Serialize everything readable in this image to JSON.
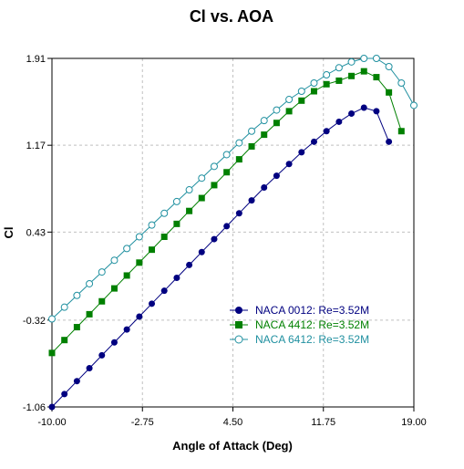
{
  "chart_data": {
    "type": "line",
    "title": "Cl vs. AOA",
    "xlabel": "Angle of Attack (Deg)",
    "ylabel": "Cl",
    "xlim": [
      -10.0,
      19.0
    ],
    "ylim": [
      -1.06,
      1.91
    ],
    "xticks": [
      "-10.00",
      "-2.75",
      "4.50",
      "11.75",
      "19.00"
    ],
    "yticks": [
      "-1.06",
      "-0.32",
      "0.43",
      "1.17",
      "1.91"
    ],
    "grid": true,
    "legend_position": "lower-right",
    "series": [
      {
        "name": "NACA 0012: Re=3.52M",
        "color": "#000080",
        "marker": "filled-circle",
        "points": [
          [
            -10,
            -1.06
          ],
          [
            -9,
            -0.95
          ],
          [
            -8,
            -0.84
          ],
          [
            -7,
            -0.73
          ],
          [
            -6,
            -0.62
          ],
          [
            -5,
            -0.51
          ],
          [
            -4,
            -0.4
          ],
          [
            -3,
            -0.29
          ],
          [
            -2,
            -0.18
          ],
          [
            -1,
            -0.07
          ],
          [
            0,
            0.04
          ],
          [
            1,
            0.15
          ],
          [
            2,
            0.26
          ],
          [
            3,
            0.37
          ],
          [
            4,
            0.48
          ],
          [
            5,
            0.59
          ],
          [
            6,
            0.7
          ],
          [
            7,
            0.81
          ],
          [
            8,
            0.91
          ],
          [
            9,
            1.01
          ],
          [
            10,
            1.11
          ],
          [
            11,
            1.2
          ],
          [
            12,
            1.29
          ],
          [
            13,
            1.37
          ],
          [
            14,
            1.44
          ],
          [
            15,
            1.49
          ],
          [
            16,
            1.46
          ],
          [
            17,
            1.2
          ]
        ]
      },
      {
        "name": "NACA 4412: Re=3.52M",
        "color": "#008000",
        "marker": "filled-square",
        "points": [
          [
            -10,
            -0.6
          ],
          [
            -9,
            -0.49
          ],
          [
            -8,
            -0.38
          ],
          [
            -7,
            -0.27
          ],
          [
            -6,
            -0.16
          ],
          [
            -5,
            -0.05
          ],
          [
            -4,
            0.06
          ],
          [
            -3,
            0.17
          ],
          [
            -2,
            0.28
          ],
          [
            -1,
            0.39
          ],
          [
            0,
            0.5
          ],
          [
            1,
            0.61
          ],
          [
            2,
            0.72
          ],
          [
            3,
            0.83
          ],
          [
            4,
            0.94
          ],
          [
            5,
            1.05
          ],
          [
            6,
            1.16
          ],
          [
            7,
            1.26
          ],
          [
            8,
            1.36
          ],
          [
            9,
            1.46
          ],
          [
            10,
            1.55
          ],
          [
            11,
            1.63
          ],
          [
            12,
            1.69
          ],
          [
            13,
            1.72
          ],
          [
            14,
            1.76
          ],
          [
            15,
            1.8
          ],
          [
            16,
            1.75
          ],
          [
            17,
            1.62
          ],
          [
            18,
            1.29
          ]
        ]
      },
      {
        "name": "NACA 6412: Re=3.52M",
        "color": "#2090A0",
        "marker": "open-circle",
        "points": [
          [
            -10,
            -0.31
          ],
          [
            -9,
            -0.21
          ],
          [
            -8,
            -0.11
          ],
          [
            -7,
            -0.01
          ],
          [
            -6,
            0.09
          ],
          [
            -5,
            0.19
          ],
          [
            -4,
            0.29
          ],
          [
            -3,
            0.39
          ],
          [
            -2,
            0.49
          ],
          [
            -1,
            0.59
          ],
          [
            0,
            0.69
          ],
          [
            1,
            0.79
          ],
          [
            2,
            0.89
          ],
          [
            3,
            0.99
          ],
          [
            4,
            1.09
          ],
          [
            5,
            1.19
          ],
          [
            6,
            1.29
          ],
          [
            7,
            1.38
          ],
          [
            8,
            1.47
          ],
          [
            9,
            1.56
          ],
          [
            10,
            1.63
          ],
          [
            11,
            1.7
          ],
          [
            12,
            1.77
          ],
          [
            13,
            1.83
          ],
          [
            14,
            1.88
          ],
          [
            15,
            1.91
          ],
          [
            16,
            1.91
          ],
          [
            17,
            1.84
          ],
          [
            18,
            1.7
          ],
          [
            19,
            1.51
          ]
        ]
      }
    ]
  }
}
